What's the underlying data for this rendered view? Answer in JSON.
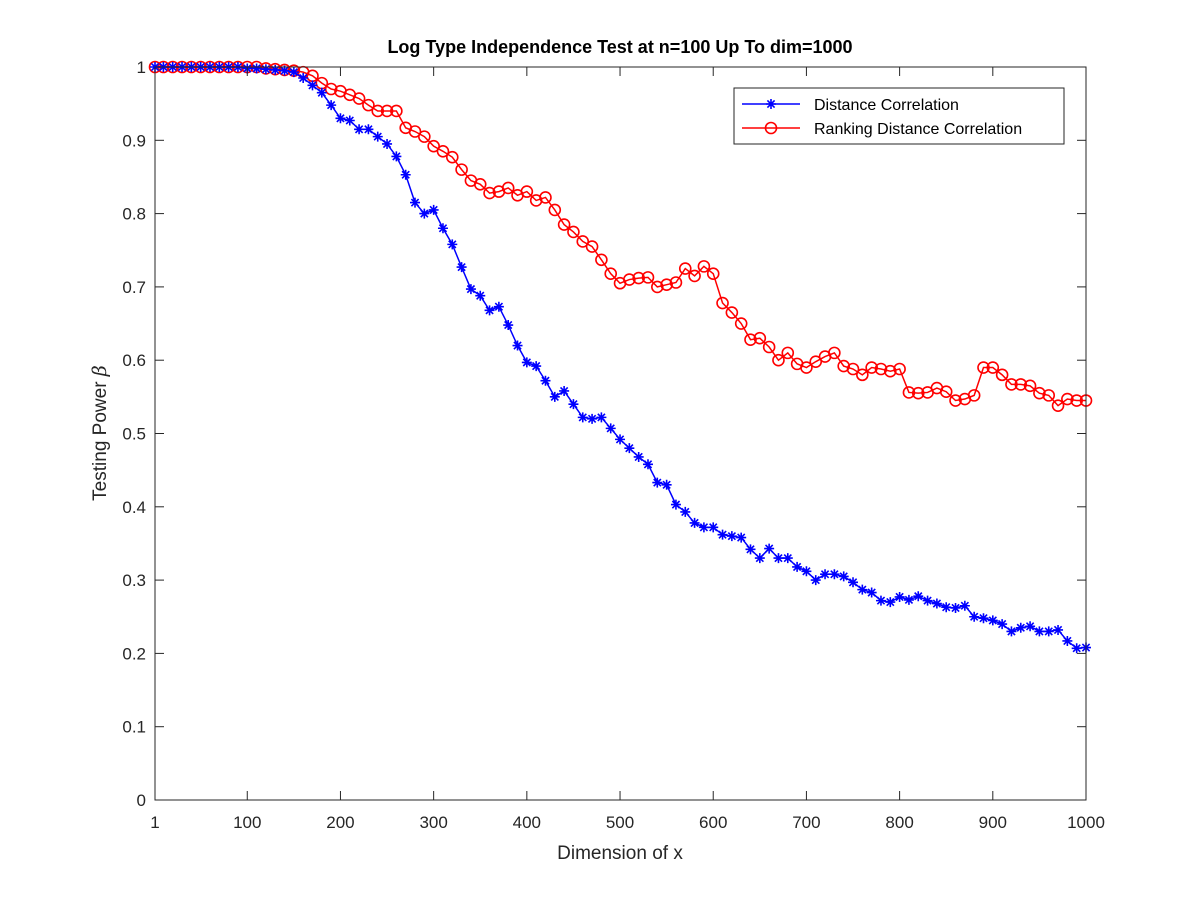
{
  "chart_data": {
    "type": "line",
    "title": "Log Type Independence Test at n=100 Up To dim=1000",
    "xlabel": "Dimension of x",
    "ylabel": "Testing Power ",
    "ylabel_symbol": "β",
    "xlim": [
      1,
      1000
    ],
    "ylim": [
      0,
      1
    ],
    "xticks": [
      1,
      100,
      200,
      300,
      400,
      500,
      600,
      700,
      800,
      900,
      1000
    ],
    "yticks": [
      0,
      0.1,
      0.2,
      0.3,
      0.4,
      0.5,
      0.6,
      0.7,
      0.8,
      0.9,
      1
    ],
    "legend_position": "top-right",
    "grid": false,
    "x": [
      1,
      10,
      20,
      30,
      40,
      50,
      60,
      70,
      80,
      90,
      100,
      110,
      120,
      130,
      140,
      150,
      160,
      170,
      180,
      190,
      200,
      210,
      220,
      230,
      240,
      250,
      260,
      270,
      280,
      290,
      300,
      310,
      320,
      330,
      340,
      350,
      360,
      370,
      380,
      390,
      400,
      410,
      420,
      430,
      440,
      450,
      460,
      470,
      480,
      490,
      500,
      510,
      520,
      530,
      540,
      550,
      560,
      570,
      580,
      590,
      600,
      610,
      620,
      630,
      640,
      650,
      660,
      670,
      680,
      690,
      700,
      710,
      720,
      730,
      740,
      750,
      760,
      770,
      780,
      790,
      800,
      810,
      820,
      830,
      840,
      850,
      860,
      870,
      880,
      890,
      900,
      910,
      920,
      930,
      940,
      950,
      960,
      970,
      980,
      990,
      1000
    ],
    "series": [
      {
        "name": "Distance Correlation",
        "color": "#0000ff",
        "marker": "star",
        "values": [
          1,
          1,
          1,
          1,
          1,
          1,
          1,
          1,
          1,
          1,
          0.998,
          0.998,
          0.997,
          0.996,
          0.995,
          0.993,
          0.985,
          0.975,
          0.965,
          0.948,
          0.93,
          0.927,
          0.915,
          0.915,
          0.905,
          0.895,
          0.878,
          0.853,
          0.815,
          0.8,
          0.805,
          0.78,
          0.758,
          0.727,
          0.697,
          0.688,
          0.668,
          0.673,
          0.648,
          0.62,
          0.597,
          0.592,
          0.572,
          0.55,
          0.558,
          0.54,
          0.522,
          0.52,
          0.522,
          0.507,
          0.492,
          0.48,
          0.468,
          0.458,
          0.433,
          0.43,
          0.403,
          0.393,
          0.378,
          0.372,
          0.372,
          0.362,
          0.36,
          0.358,
          0.342,
          0.33,
          0.343,
          0.33,
          0.33,
          0.318,
          0.312,
          0.3,
          0.308,
          0.308,
          0.305,
          0.297,
          0.287,
          0.283,
          0.272,
          0.27,
          0.277,
          0.273,
          0.278,
          0.272,
          0.268,
          0.263,
          0.262,
          0.265,
          0.25,
          0.248,
          0.245,
          0.24,
          0.23,
          0.235,
          0.237,
          0.23,
          0.23,
          0.232,
          0.217,
          0.207,
          0.208
        ]
      },
      {
        "name": "Ranking Distance Correlation",
        "color": "#ff0000",
        "marker": "circle",
        "values": [
          1,
          1,
          1,
          1,
          1,
          1,
          1,
          1,
          1,
          1,
          1,
          1,
          0.998,
          0.997,
          0.996,
          0.995,
          0.993,
          0.988,
          0.978,
          0.97,
          0.967,
          0.962,
          0.957,
          0.948,
          0.94,
          0.94,
          0.94,
          0.917,
          0.912,
          0.905,
          0.892,
          0.885,
          0.877,
          0.86,
          0.845,
          0.84,
          0.828,
          0.83,
          0.835,
          0.825,
          0.83,
          0.818,
          0.822,
          0.805,
          0.785,
          0.775,
          0.762,
          0.755,
          0.737,
          0.718,
          0.705,
          0.71,
          0.712,
          0.713,
          0.7,
          0.703,
          0.706,
          0.725,
          0.715,
          0.728,
          0.718,
          0.678,
          0.665,
          0.65,
          0.628,
          0.63,
          0.618,
          0.6,
          0.61,
          0.595,
          0.59,
          0.598,
          0.605,
          0.61,
          0.592,
          0.588,
          0.58,
          0.59,
          0.588,
          0.585,
          0.588,
          0.556,
          0.555,
          0.556,
          0.562,
          0.557,
          0.545,
          0.547,
          0.552,
          0.59,
          0.59,
          0.58,
          0.567,
          0.567,
          0.565,
          0.555,
          0.552,
          0.538,
          0.547,
          0.545,
          0.545
        ]
      }
    ]
  }
}
